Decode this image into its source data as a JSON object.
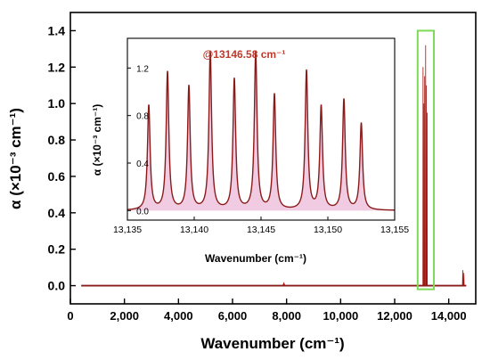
{
  "chart_data": [
    {
      "type": "line",
      "role": "main",
      "title": "",
      "xlabel": "Wavenumber (cm⁻¹)",
      "ylabel": "α (×10⁻³ cm⁻¹)",
      "xlim": [
        0,
        15000
      ],
      "ylim": [
        -0.1,
        1.5
      ],
      "xticks": [
        0,
        2000,
        4000,
        6000,
        8000,
        10000,
        12000,
        14000
      ],
      "xtick_labels": [
        "0",
        "2,000",
        "4,000",
        "6,000",
        "8,000",
        "10,000",
        "12,000",
        "14,000"
      ],
      "yticks": [
        0.0,
        0.2,
        0.4,
        0.6,
        0.8,
        1.0,
        1.2,
        1.4
      ],
      "ytick_labels": [
        "0.0",
        "0.2",
        "0.4",
        "0.6",
        "0.8",
        "1.0",
        "1.2",
        "1.4"
      ],
      "baseline_range": [
        400,
        14650
      ],
      "peaks": [
        {
          "center": 7900,
          "height": 0.015,
          "width": 80
        },
        {
          "center": 13050,
          "height": 1.2,
          "width": 12
        },
        {
          "center": 13080,
          "height": 1.0,
          "width": 12
        },
        {
          "center": 13110,
          "height": 1.15,
          "width": 12
        },
        {
          "center": 13146.58,
          "height": 1.32,
          "width": 12
        },
        {
          "center": 13170,
          "height": 1.1,
          "width": 12
        },
        {
          "center": 13200,
          "height": 0.95,
          "width": 12
        },
        {
          "center": 14520,
          "height": 0.085,
          "width": 25
        },
        {
          "center": 14560,
          "height": 0.07,
          "width": 25
        }
      ],
      "highlight_box": {
        "x": [
          12850,
          13450
        ],
        "y": [
          -0.02,
          1.4
        ],
        "color": "#7ed957"
      },
      "line_color": "#8b1a1a",
      "fill_color": "#d8201a"
    },
    {
      "type": "line",
      "role": "inset",
      "title": "",
      "annotation": "@13146.58 cm⁻¹",
      "xlabel": "Wavenumber (cm⁻¹)",
      "ylabel": "α (×10⁻³ cm⁻¹)",
      "xlim": [
        13135,
        13155
      ],
      "ylim": [
        -0.08,
        1.45
      ],
      "xticks": [
        13135,
        13140,
        13145,
        13150,
        13155
      ],
      "xtick_labels": [
        "13,135",
        "13,140",
        "13,145",
        "13,150",
        "13,155"
      ],
      "yticks": [
        0.0,
        0.4,
        0.8,
        1.2
      ],
      "ytick_labels": [
        "0.0",
        "0.4",
        "0.8",
        "1.2"
      ],
      "lines": [
        {
          "center": 13136.6,
          "height": 0.88
        },
        {
          "center": 13138.0,
          "height": 1.16
        },
        {
          "center": 13139.6,
          "height": 1.04
        },
        {
          "center": 13141.2,
          "height": 1.33
        },
        {
          "center": 13143.0,
          "height": 1.1
        },
        {
          "center": 13144.6,
          "height": 1.33
        },
        {
          "center": 13146.0,
          "height": 0.97
        },
        {
          "center": 13148.4,
          "height": 1.17
        },
        {
          "center": 13149.5,
          "height": 0.87
        },
        {
          "center": 13151.2,
          "height": 0.93
        },
        {
          "center": 13152.5,
          "height": 0.73
        }
      ],
      "line_width": 0.12,
      "line_color": "#8b1a1a",
      "fill_color": "#e6a0c8",
      "annotation_color": "#c0392b"
    }
  ]
}
